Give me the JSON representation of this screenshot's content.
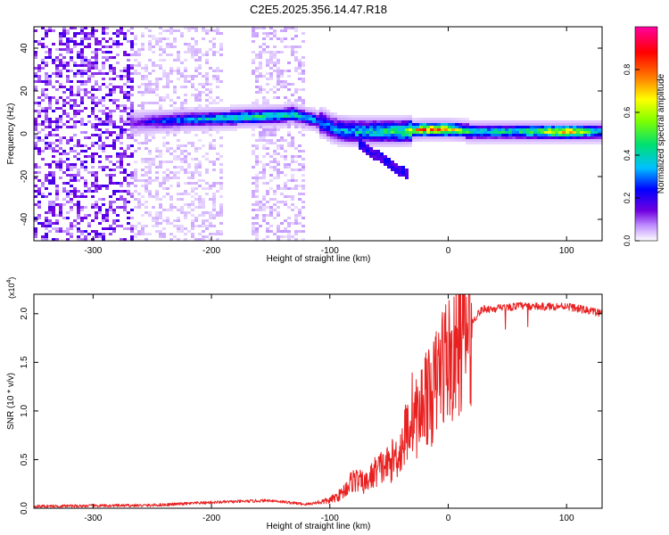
{
  "figure": {
    "title": "C2E5.2025.356.14.47.R18"
  },
  "chart_data": [
    {
      "type": "heatmap",
      "xlabel": "Height of straight line (km)",
      "ylabel": "Frequency (Hz)",
      "xlim": [
        -350,
        130
      ],
      "ylim": [
        -50,
        50
      ],
      "xticks": [
        -300,
        -200,
        -100,
        0,
        100
      ],
      "yticks": [
        -40,
        -20,
        0,
        20,
        40
      ],
      "colorbar": {
        "label": "Normalized spectral amplitude",
        "range": [
          0,
          1
        ],
        "ticks": [
          0.0,
          0.2,
          0.4,
          0.6,
          0.8
        ],
        "tick_labels": [
          "0.0",
          "0.2",
          "0.4",
          "0.6",
          "0.8"
        ],
        "colors": [
          "#ffffff",
          "#c090ff",
          "#7000e0",
          "#0000ff",
          "#00c0ff",
          "#00e070",
          "#80ff00",
          "#ffff00",
          "#ff8000",
          "#ff0000",
          "#ff00a0"
        ]
      },
      "ridge": {
        "height_km": [
          -265,
          -240,
          -200,
          -160,
          -130,
          -110,
          -95,
          -80,
          -60,
          -40,
          -20,
          0,
          20,
          60,
          100,
          130
        ],
        "frequency_hz": [
          5,
          6,
          7,
          8,
          9,
          6,
          2,
          1,
          1,
          1,
          2,
          2,
          1,
          1,
          1,
          1
        ],
        "amplitude": [
          0.2,
          0.35,
          0.45,
          0.55,
          0.5,
          0.4,
          0.4,
          0.45,
          0.5,
          0.55,
          0.85,
          0.8,
          0.5,
          0.5,
          0.8,
          0.45
        ]
      }
    },
    {
      "type": "line",
      "xlabel": "Height of straight line (km)",
      "ylabel": "SNR (10 * v/v)",
      "y_multiplier_label": "(x10",
      "y_multiplier_exp": "4",
      "xlim": [
        -350,
        130
      ],
      "ylim": [
        0,
        2.2
      ],
      "xticks": [
        -300,
        -200,
        -100,
        0,
        100
      ],
      "yticks": [
        0.0,
        0.5,
        1.0,
        1.5,
        2.0
      ],
      "ytick_labels": [
        "0.0",
        "0.5",
        "1.0",
        "1.5",
        "2.0"
      ],
      "series_color": "#e82020",
      "x": [
        -350,
        -250,
        -200,
        -150,
        -120,
        -100,
        -90,
        -80,
        -70,
        -60,
        -50,
        -40,
        -30,
        -25,
        -20,
        -15,
        -10,
        -5,
        0,
        5,
        10,
        15,
        20,
        25,
        30,
        40,
        60,
        80,
        100,
        110,
        120,
        130
      ],
      "y": [
        0.02,
        0.03,
        0.06,
        0.08,
        0.04,
        0.08,
        0.15,
        0.3,
        0.25,
        0.4,
        0.45,
        0.6,
        1.0,
        0.9,
        1.2,
        1.1,
        1.3,
        1.5,
        1.55,
        1.5,
        1.75,
        1.8,
        1.9,
        2.0,
        2.05,
        2.05,
        2.08,
        2.07,
        2.08,
        2.05,
        2.03,
        2.0
      ]
    }
  ]
}
